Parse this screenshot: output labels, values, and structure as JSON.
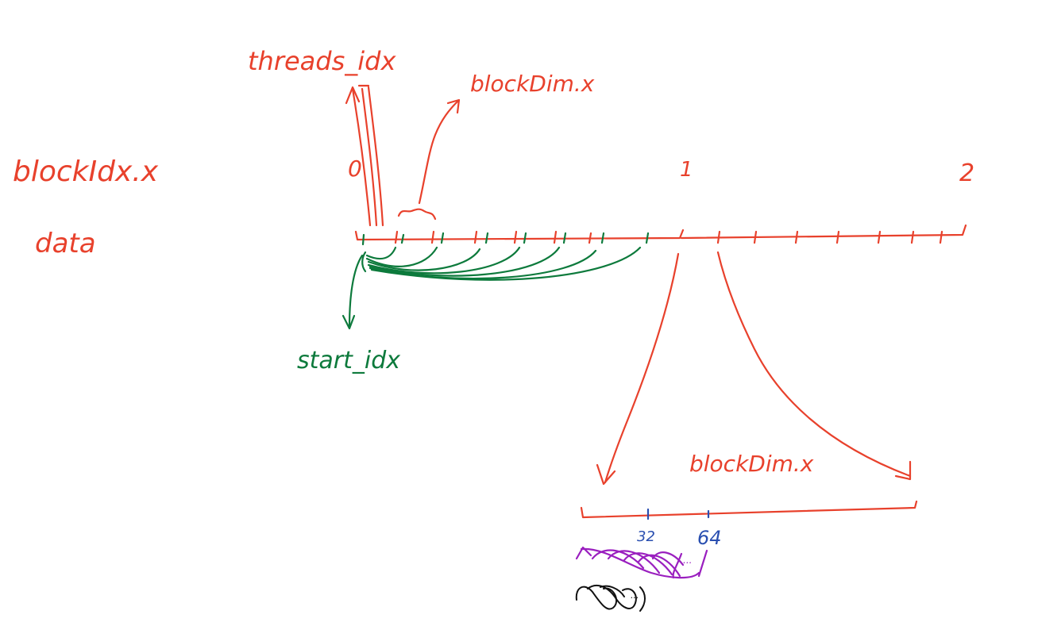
{
  "labels": {
    "threads_idx": "threads_idx",
    "blockDim_top": "blockDim.x",
    "blockIdx": "blockIdx.x",
    "data": "data",
    "start_idx": "start_idx",
    "blockDim_bottom": "blockDim.x",
    "block_0": "0",
    "block_1": "1",
    "block_2": "2",
    "tick_32": "32",
    "tick_64": "64",
    "purple_ellipsis": "...",
    "black_ellipsis": "..."
  },
  "colors": {
    "red": "#e8412c",
    "green": "#0d7a3c",
    "blue": "#2a4fb0",
    "purple": "#9a1fbf",
    "black": "#111111"
  }
}
